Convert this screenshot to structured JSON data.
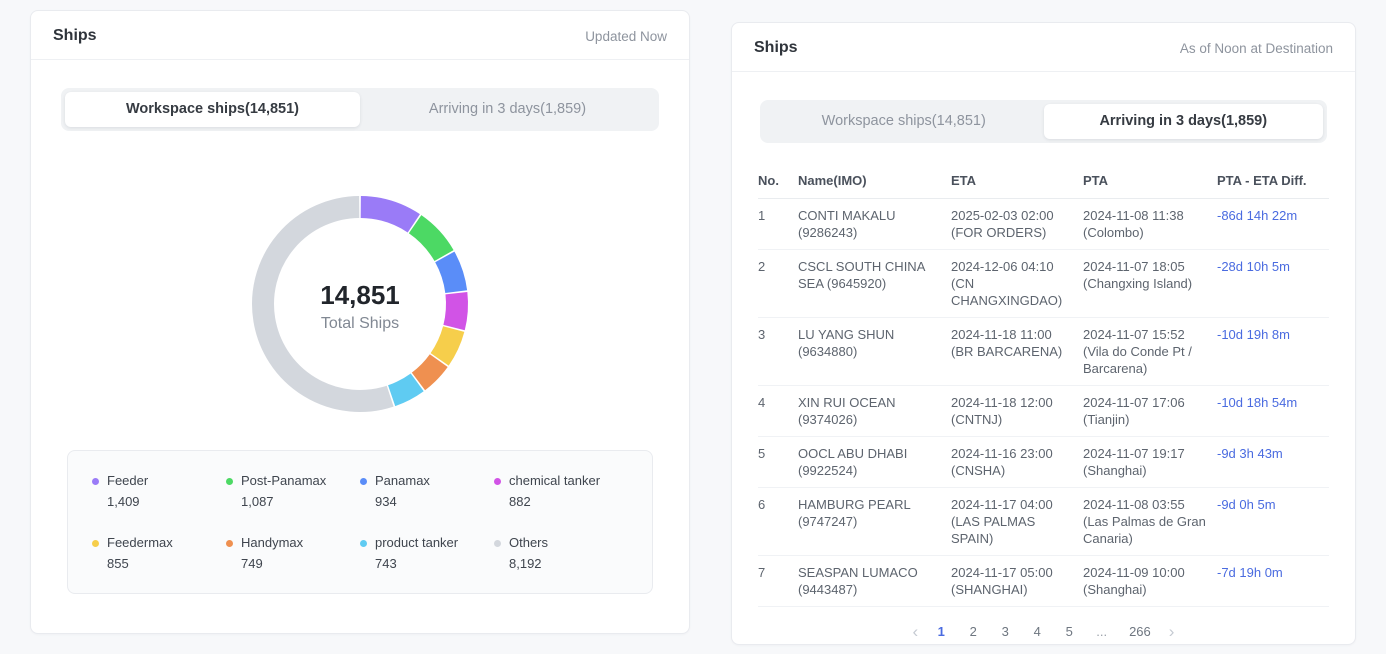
{
  "left_panel": {
    "title": "Ships",
    "status": "Updated Now",
    "tabs": [
      {
        "label": "Workspace ships(14,851)",
        "active": true
      },
      {
        "label": "Arriving in 3 days(1,859)",
        "active": false
      }
    ]
  },
  "chart_data": {
    "type": "pie",
    "title": "Total Ships",
    "center_value": "14,851",
    "center_label": "Total Ships",
    "legend_position": "bottom",
    "segments": [
      {
        "label": "Feeder",
        "value": 1409,
        "display": "1,409",
        "color": "#9a7bf7"
      },
      {
        "label": "Post-Panamax",
        "value": 1087,
        "display": "1,087",
        "color": "#4cd964"
      },
      {
        "label": "Panamax",
        "value": 934,
        "display": "934",
        "color": "#5a8df8"
      },
      {
        "label": "chemical tanker",
        "value": 882,
        "display": "882",
        "color": "#d153e6"
      },
      {
        "label": "Feedermax",
        "value": 855,
        "display": "855",
        "color": "#f6ce4b"
      },
      {
        "label": "Handymax",
        "value": 749,
        "display": "749",
        "color": "#ef9050"
      },
      {
        "label": "product tanker",
        "value": 743,
        "display": "743",
        "color": "#5fcbf2"
      },
      {
        "label": "Others",
        "value": 8192,
        "display": "8,192",
        "color": "#d3d7dd"
      }
    ]
  },
  "right_panel": {
    "title": "Ships",
    "status": "As of Noon at Destination",
    "tabs": [
      {
        "label": "Workspace ships(14,851)",
        "active": false
      },
      {
        "label": "Arriving in 3 days(1,859)",
        "active": true
      }
    ],
    "table": {
      "columns": [
        "No.",
        "Name(IMO)",
        "ETA",
        "PTA",
        "PTA - ETA Diff."
      ],
      "rows": [
        {
          "no": "1",
          "name": "CONTI MAKALU",
          "imo": "(9286243)",
          "eta_time": "2025-02-03 02:00",
          "eta_port": "(FOR ORDERS)",
          "pta_time": "2024-11-08 11:38",
          "pta_port": "(Colombo)",
          "diff": "-86d 14h 22m"
        },
        {
          "no": "2",
          "name": "CSCL SOUTH CHINA SEA",
          "imo": "(9645920)",
          "eta_time": "2024-12-06 04:10",
          "eta_port": "(CN CHANGXINGDAO)",
          "pta_time": "2024-11-07 18:05",
          "pta_port": "(Changxing Island)",
          "diff": "-28d 10h 5m"
        },
        {
          "no": "3",
          "name": "LU YANG SHUN",
          "imo": "(9634880)",
          "eta_time": "2024-11-18 11:00",
          "eta_port": "(BR BARCARENA)",
          "pta_time": "2024-11-07 15:52",
          "pta_port": "(Vila do Conde Pt / Barcarena)",
          "diff": "-10d 19h 8m"
        },
        {
          "no": "4",
          "name": "XIN RUI OCEAN",
          "imo": "(9374026)",
          "eta_time": "2024-11-18 12:00",
          "eta_port": "(CNTNJ)",
          "pta_time": "2024-11-07 17:06",
          "pta_port": "(Tianjin)",
          "diff": "-10d 18h 54m"
        },
        {
          "no": "5",
          "name": "OOCL ABU DHABI",
          "imo": "(9922524)",
          "eta_time": "2024-11-16 23:00",
          "eta_port": "(CNSHA)",
          "pta_time": "2024-11-07 19:17",
          "pta_port": "(Shanghai)",
          "diff": "-9d 3h 43m"
        },
        {
          "no": "6",
          "name": "HAMBURG PEARL",
          "imo": "(9747247)",
          "eta_time": "2024-11-17 04:00",
          "eta_port": "(LAS PALMAS SPAIN)",
          "pta_time": "2024-11-08 03:55",
          "pta_port": "(Las Palmas de Gran Canaria)",
          "diff": "-9d 0h 5m"
        },
        {
          "no": "7",
          "name": "SEASPAN LUMACO",
          "imo": "(9443487)",
          "eta_time": "2024-11-17 05:00",
          "eta_port": "(SHANGHAI)",
          "pta_time": "2024-11-09 10:00",
          "pta_port": "(Shanghai)",
          "diff": "-7d 19h 0m"
        }
      ]
    },
    "pagination": {
      "prev_icon": "‹",
      "next_icon": "›",
      "items": [
        "1",
        "2",
        "3",
        "4",
        "5",
        "...",
        "266"
      ],
      "active": "1"
    }
  }
}
